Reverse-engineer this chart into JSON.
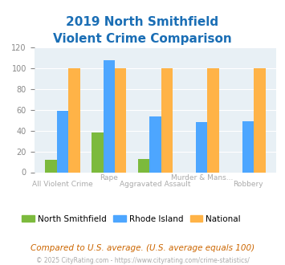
{
  "title_line1": "2019 North Smithfield",
  "title_line2": "Violent Crime Comparison",
  "categories": [
    "All Violent Crime",
    "Rape",
    "Aggravated Assault",
    "Murder & Mans...",
    "Robbery"
  ],
  "north_smithfield": [
    12,
    38,
    13,
    0,
    0
  ],
  "rhode_island": [
    59,
    108,
    54,
    48,
    49
  ],
  "national": [
    100,
    100,
    100,
    100,
    100
  ],
  "bar_color_ns": "#7cba3d",
  "bar_color_ri": "#4da6ff",
  "bar_color_nat": "#ffb347",
  "ylim": [
    0,
    120
  ],
  "yticks": [
    0,
    20,
    40,
    60,
    80,
    100,
    120
  ],
  "bg_color": "#e8f0f5",
  "title_color": "#1a6eb5",
  "xlabel_colors": [
    "#c0a060",
    "#c0a060",
    "#c0a060",
    "#c0a060",
    "#c0a060"
  ],
  "footer_text": "Compared to U.S. average. (U.S. average equals 100)",
  "copyright_text": "© 2025 CityRating.com - https://www.cityrating.com/crime-statistics/",
  "legend_labels": [
    "North Smithfield",
    "Rhode Island",
    "National"
  ]
}
